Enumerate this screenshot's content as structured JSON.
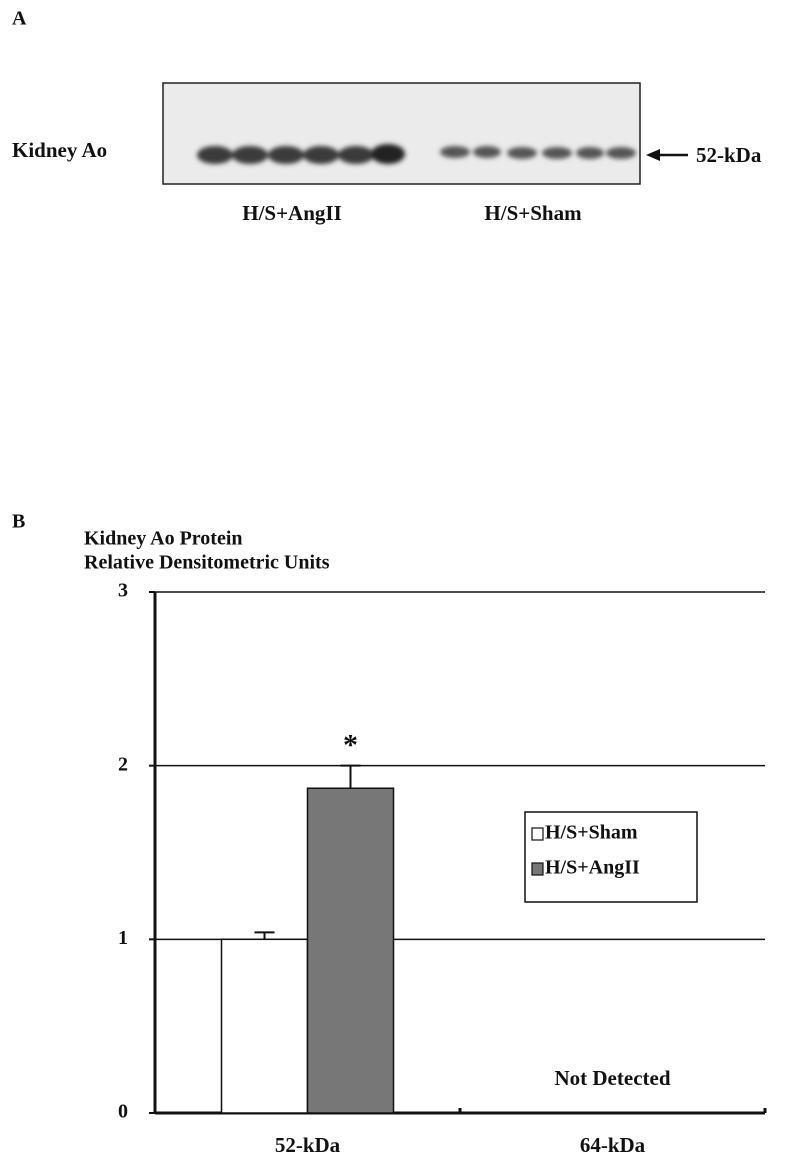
{
  "panel_a": {
    "label": "A",
    "row_label": "Kidney Ao",
    "band_label": "52-kDa",
    "lane_groups": [
      "H/S+AngII",
      "H/S+Sham"
    ]
  },
  "chart_data": {
    "type": "bar",
    "panel_label": "B",
    "title": "Kidney Ao Protein",
    "ylabel": "Relative Densitometric Units",
    "categories": [
      "52-kDa",
      "64-kDa"
    ],
    "series": [
      {
        "name": "H/S+Sham",
        "color": "#ffffff",
        "values": [
          1.0,
          null
        ],
        "errors": [
          0.04,
          null
        ]
      },
      {
        "name": "H/S+AngII",
        "color": "#777777",
        "values": [
          1.87,
          null
        ],
        "errors": [
          0.13,
          null
        ]
      }
    ],
    "ylim": [
      0,
      3
    ],
    "yticks": [
      0,
      1,
      2,
      3
    ],
    "grid": true,
    "legend": "right",
    "annotations": [
      {
        "text": "*",
        "category": 0,
        "series": 1
      },
      {
        "text": "Not Detected",
        "category": 1
      }
    ]
  }
}
